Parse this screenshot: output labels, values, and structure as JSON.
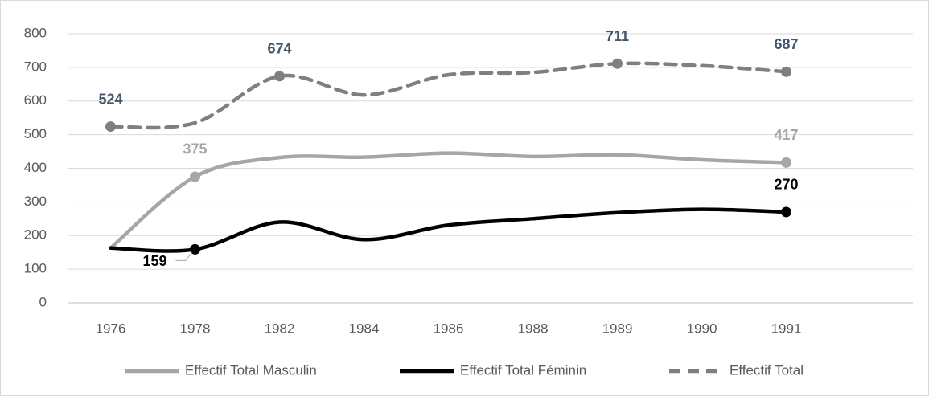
{
  "chart_data": {
    "type": "line",
    "categories": [
      "1976",
      "1978",
      "1982",
      "1984",
      "1986",
      "1988",
      "1989",
      "1990",
      "1991",
      null
    ],
    "series": [
      {
        "name": "Effectif Total Masculin",
        "color": "#a6a6a6",
        "dashed": false,
        "label_color": "#a6a6a6",
        "values": [
          163,
          375,
          432,
          433,
          445,
          435,
          440,
          425,
          417,
          null
        ],
        "value_labels": [
          null,
          "375",
          null,
          null,
          null,
          null,
          null,
          null,
          "417",
          null
        ]
      },
      {
        "name": "Effectif Total Féminin",
        "color": "#000000",
        "dashed": false,
        "label_color": "#000000",
        "values": [
          163,
          159,
          240,
          188,
          231,
          250,
          268,
          278,
          270,
          null
        ],
        "value_labels": [
          null,
          "159",
          null,
          null,
          null,
          null,
          null,
          null,
          "270",
          null
        ]
      },
      {
        "name": "Effectif Total",
        "color": "#7f7f7f",
        "dashed": true,
        "label_color": "#44546a",
        "values": [
          524,
          535,
          674,
          618,
          678,
          685,
          711,
          705,
          687,
          null
        ],
        "value_labels": [
          "524",
          null,
          "674",
          null,
          null,
          null,
          "711",
          null,
          "687",
          null
        ]
      }
    ],
    "ylim": [
      0,
      800
    ],
    "yticks": [
      0,
      100,
      200,
      300,
      400,
      500,
      600,
      700,
      800
    ],
    "grid": true,
    "legend": "bottom",
    "smooth": true
  }
}
